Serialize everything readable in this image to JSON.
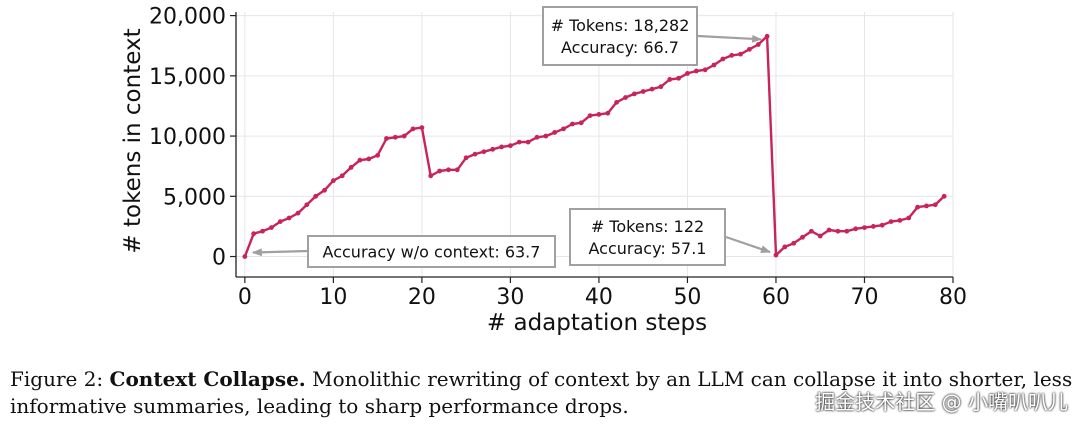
{
  "chart_data": {
    "type": "line",
    "xlabel": "# adaptation steps",
    "ylabel": "# tokens in context",
    "xlim": [
      -1,
      80
    ],
    "ylim": [
      -1700,
      20300
    ],
    "xticks": [
      0,
      10,
      20,
      30,
      40,
      50,
      60,
      70,
      80
    ],
    "yticks": [
      0,
      5000,
      10000,
      15000,
      20000
    ],
    "ytick_labels": [
      "0",
      "5,000",
      "10,000",
      "15,000",
      "20,000"
    ],
    "grid": true,
    "line_color": "#c8235a",
    "x": [
      0,
      1,
      2,
      3,
      4,
      5,
      6,
      7,
      8,
      9,
      10,
      11,
      12,
      13,
      14,
      15,
      16,
      17,
      18,
      19,
      20,
      21,
      22,
      23,
      24,
      25,
      26,
      27,
      28,
      29,
      30,
      31,
      32,
      33,
      34,
      35,
      36,
      37,
      38,
      39,
      40,
      41,
      42,
      43,
      44,
      45,
      46,
      47,
      48,
      49,
      50,
      51,
      52,
      53,
      54,
      55,
      56,
      57,
      58,
      59,
      60,
      61,
      62,
      63,
      64,
      65,
      66,
      67,
      68,
      69,
      70,
      71,
      72,
      73,
      74,
      75,
      76,
      77,
      78,
      79
    ],
    "y": [
      0,
      1900,
      2100,
      2400,
      2900,
      3200,
      3600,
      4300,
      5000,
      5500,
      6300,
      6700,
      7400,
      8000,
      8100,
      8400,
      9800,
      9900,
      10000,
      10600,
      10700,
      6700,
      7100,
      7200,
      7200,
      8200,
      8500,
      8700,
      8900,
      9100,
      9200,
      9500,
      9500,
      9900,
      10000,
      10300,
      10600,
      11000,
      11100,
      11700,
      11800,
      11900,
      12800,
      13200,
      13500,
      13700,
      13900,
      14100,
      14700,
      14800,
      15200,
      15400,
      15500,
      15900,
      16400,
      16700,
      16800,
      17200,
      17600,
      18282,
      122,
      800,
      1100,
      1600,
      2100,
      1700,
      2200,
      2100,
      2100,
      2300,
      2400,
      2500,
      2600,
      2900,
      3000,
      3200,
      4100,
      4200,
      4300,
      5000
    ],
    "annotations": [
      {
        "id": "peak",
        "lines": [
          "# Tokens: 18,282",
          "Accuracy: 66.7"
        ],
        "point": [
          59,
          18282
        ]
      },
      {
        "id": "collapse",
        "lines": [
          "# Tokens: 122",
          "Accuracy: 57.1"
        ],
        "point": [
          60,
          122
        ]
      },
      {
        "id": "start",
        "lines": [
          "Accuracy w/o context: 63.7"
        ],
        "point": [
          0,
          0
        ]
      }
    ]
  },
  "caption": {
    "prefix": "Figure 2: ",
    "title": "Context Collapse.",
    "line1_rest": " Monolithic rewriting of context by an LLM can collapse it into shorter, less",
    "line2": "informative summaries, leading to sharp performance drops."
  },
  "watermark": "掘金技术社区 @ 小嘴叭叭儿"
}
